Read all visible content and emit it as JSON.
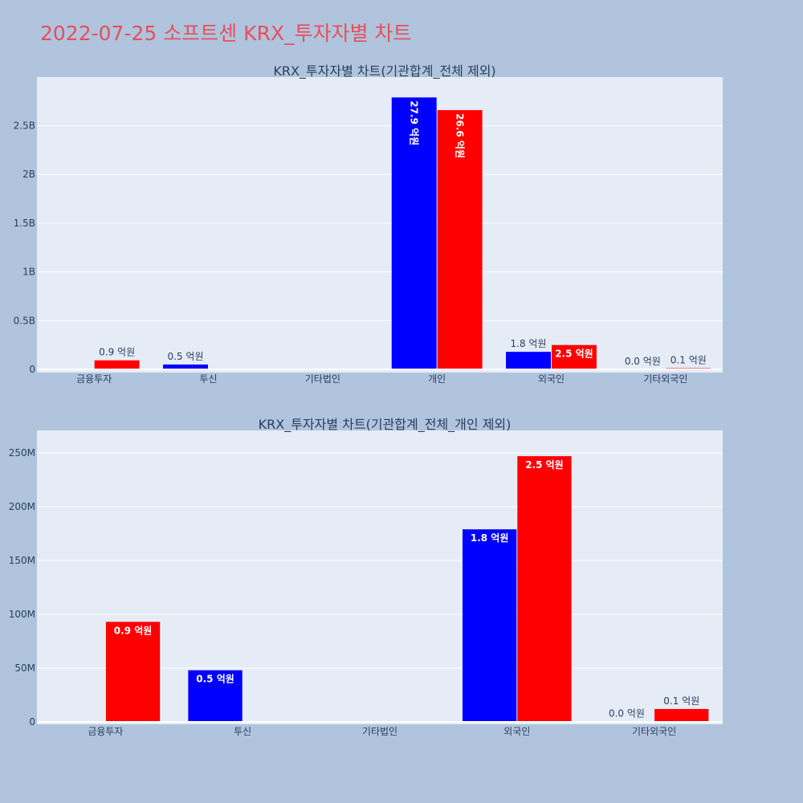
{
  "page": {
    "title": "2022-07-25 소프트센 KRX_투자자별 차트"
  },
  "colors": {
    "background": "#b0c4de",
    "plot_bg": "#e5ecf6",
    "buy": "#0000ff",
    "sell": "#ff0000"
  },
  "chart_data": [
    {
      "type": "bar",
      "title": "KRX_투자자별 차트(기관합계_전체 제외)",
      "categories": [
        "금융투자",
        "투신",
        "기타법인",
        "개인",
        "외국인",
        "기타외국인"
      ],
      "ylim": [
        0,
        2900000000
      ],
      "yticks": [
        0,
        500000000,
        1000000000,
        1500000000,
        2000000000,
        2500000000
      ],
      "ytick_labels": [
        "0",
        "0.5B",
        "1B",
        "1.5B",
        "2B",
        "2.5B"
      ],
      "grid": true,
      "series": [
        {
          "color": "#0000ff",
          "values": [
            0,
            50000000,
            0,
            2790000000,
            180000000,
            2000000
          ],
          "labels": [
            "",
            "0.5 억원",
            "",
            "27.9 억원",
            "1.8 억원",
            "0.0 억원"
          ]
        },
        {
          "color": "#ff0000",
          "values": [
            93000000,
            0,
            0,
            2660000000,
            250000000,
            12000000
          ],
          "labels": [
            "0.9 억원",
            "",
            "",
            "26.6 억원",
            "2.5 억원",
            "0.1 억원"
          ]
        }
      ]
    },
    {
      "type": "bar",
      "title": "KRX_투자자별 차트(기관합계_전체_개인 제외)",
      "categories": [
        "금융투자",
        "투신",
        "기타법인",
        "외국인",
        "기타외국인"
      ],
      "ylim": [
        0,
        262000000
      ],
      "yticks": [
        0,
        50000000,
        100000000,
        150000000,
        200000000,
        250000000
      ],
      "ytick_labels": [
        "0",
        "50M",
        "100M",
        "150M",
        "200M",
        "250M"
      ],
      "grid": true,
      "series": [
        {
          "color": "#0000ff",
          "values": [
            0,
            48000000,
            0,
            179000000,
            500000
          ],
          "labels": [
            "",
            "0.5 억원",
            "",
            "1.8 억원",
            "0.0 억원"
          ]
        },
        {
          "color": "#ff0000",
          "values": [
            93000000,
            0,
            0,
            247000000,
            12000000
          ],
          "labels": [
            "0.9 억원",
            "",
            "",
            "2.5 억원",
            "0.1 억원"
          ]
        }
      ]
    }
  ]
}
